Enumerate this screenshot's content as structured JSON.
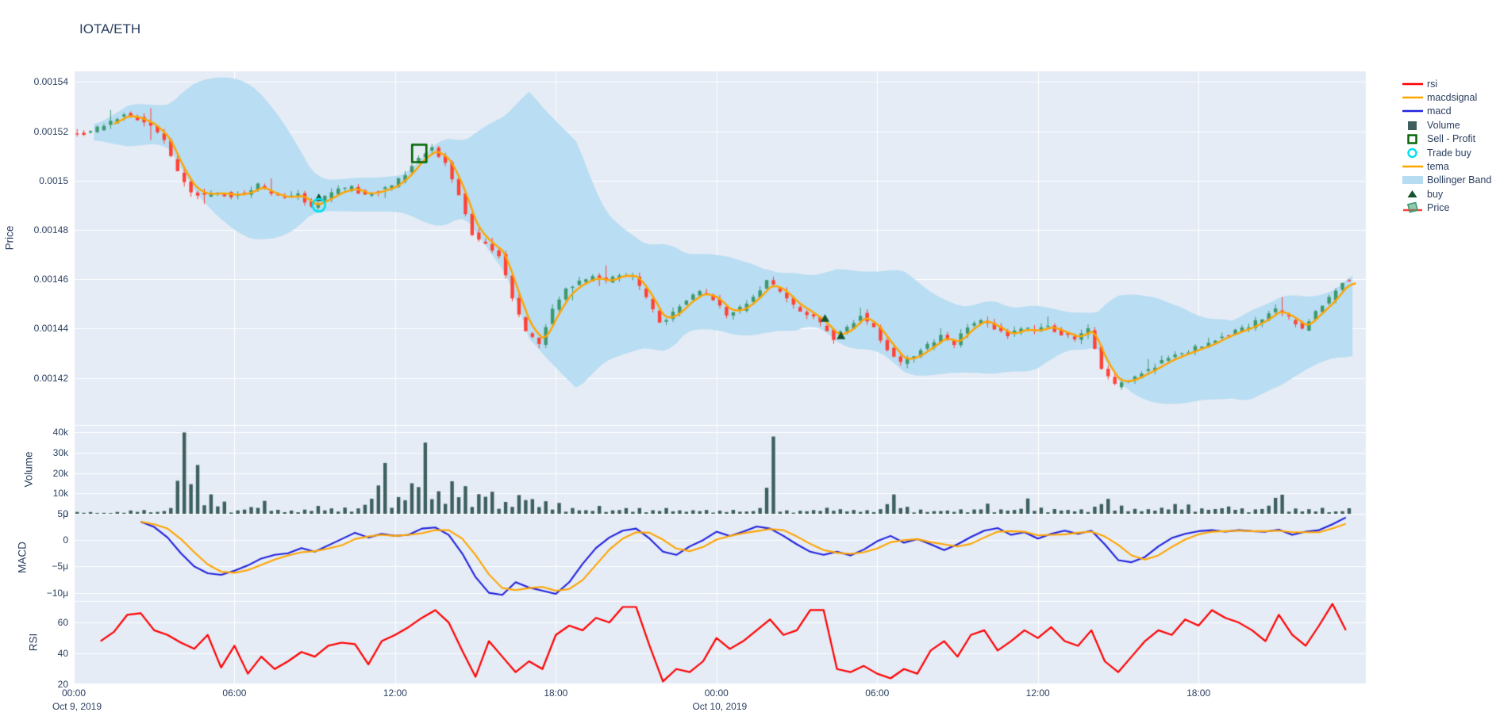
{
  "title": "IOTA/ETH",
  "colors": {
    "background": "#ffffff",
    "plot_bg": "#e5ecf6",
    "grid": "#ffffff",
    "text": "#2a3f5f",
    "candle_up": "#3D9970",
    "candle_down": "#FF4136",
    "volume_bar": "#3d5f5e",
    "macd_line": "#2222dd",
    "macdsignal_line": "#ffa500",
    "tema_line": "#ffa500",
    "rsi_line": "#ff0000",
    "bollinger": "#b6dcf1",
    "buy_marker": "#14532d",
    "sell_marker": "#006400",
    "trade_buy_marker": "#00e0ee"
  },
  "panels": {
    "price": {
      "label": "Price"
    },
    "volume": {
      "label": "Volume"
    },
    "macd": {
      "label": "MACD"
    },
    "rsi": {
      "label": "RSI"
    }
  },
  "x_axis": {
    "ticks": [
      {
        "t": 0,
        "label": "00:00"
      },
      {
        "t": 6,
        "label": "06:00"
      },
      {
        "t": 12,
        "label": "12:00"
      },
      {
        "t": 18,
        "label": "18:00"
      },
      {
        "t": 24,
        "label": "00:00"
      },
      {
        "t": 30,
        "label": "06:00"
      },
      {
        "t": 36,
        "label": "12:00"
      },
      {
        "t": 42,
        "label": "18:00"
      }
    ],
    "day_labels": [
      {
        "t": 0,
        "label": "Oct 9, 2019"
      },
      {
        "t": 24,
        "label": "Oct 10, 2019"
      }
    ]
  },
  "legend": {
    "items": [
      {
        "label": "rsi",
        "symbol": "line",
        "color": "#ff0000"
      },
      {
        "label": "macdsignal",
        "symbol": "line",
        "color": "#ffa500"
      },
      {
        "label": "macd",
        "symbol": "line",
        "color": "#2222dd"
      },
      {
        "label": "Volume",
        "symbol": "square_fill",
        "color": "#3d5f5e"
      },
      {
        "label": "Sell - Profit",
        "symbol": "square_open",
        "color": "#006400"
      },
      {
        "label": "Trade buy",
        "symbol": "circle_open",
        "color": "#00e0ee"
      },
      {
        "label": "tema",
        "symbol": "line",
        "color": "#ffa500"
      },
      {
        "label": "Bollinger Band",
        "symbol": "band",
        "color": "#b6dcf1"
      },
      {
        "label": "buy",
        "symbol": "triangle",
        "color": "#14532d"
      },
      {
        "label": "Price",
        "symbol": "candle",
        "color": "#3D9970"
      }
    ]
  },
  "chart_data": [
    {
      "type": "candlestick",
      "panel": "Price",
      "x_unit": "hours from Oct 9 2019 00:00",
      "x0": 0,
      "x_step": 0.5,
      "close_micro_eth": [
        1520,
        1519,
        1521,
        1524,
        1527,
        1525,
        1522,
        1516,
        1503,
        1495,
        1494,
        1495,
        1494,
        1495,
        1498,
        1494,
        1493,
        1494,
        1489,
        1493,
        1496,
        1497,
        1494,
        1496,
        1498,
        1503,
        1510,
        1513,
        1507,
        1494,
        1478,
        1474,
        1470,
        1452,
        1438,
        1434,
        1448,
        1456,
        1459,
        1461,
        1459,
        1462,
        1461,
        1452,
        1442,
        1446,
        1452,
        1455,
        1452,
        1446,
        1448,
        1453,
        1459,
        1455,
        1449,
        1446,
        1442,
        1436,
        1440,
        1446,
        1440,
        1432,
        1426,
        1429,
        1433,
        1437,
        1434,
        1441,
        1444,
        1440,
        1437,
        1440,
        1439,
        1441,
        1438,
        1436,
        1440,
        1424,
        1417,
        1419,
        1422,
        1425,
        1428,
        1430,
        1432,
        1434,
        1437,
        1439,
        1441,
        1444,
        1448,
        1444,
        1440,
        1447,
        1452,
        1459
      ],
      "ylim_eth": [
        0.001401,
        0.001544
      ],
      "yticks": [
        {
          "v": 1540,
          "label": "0.00154"
        },
        {
          "v": 1520,
          "label": "0.00152"
        },
        {
          "v": 1500,
          "label": "0.0015"
        },
        {
          "v": 1480,
          "label": "0.00148"
        },
        {
          "v": 1460,
          "label": "0.00146"
        },
        {
          "v": 1440,
          "label": "0.00144"
        },
        {
          "v": 1420,
          "label": "0.00142"
        }
      ],
      "overlays": {
        "tema": "ema of close",
        "bollinger_band": "rolling mean ± 2 sd"
      },
      "markers": {
        "sell_profit": [
          {
            "x": 12.9,
            "price_micro": 1511
          }
        ],
        "trade_buy": [
          {
            "x": 9.15,
            "price_micro": 1490
          }
        ],
        "buy": [
          {
            "x": 9.15,
            "price_micro": 1493
          },
          {
            "x": 28.05,
            "price_micro": 1444
          },
          {
            "x": 28.65,
            "price_micro": 1437
          }
        ]
      }
    },
    {
      "type": "bar",
      "panel": "Volume",
      "x0": 0,
      "x_step": 0.5,
      "values_k": [
        1.2,
        0.8,
        0.6,
        1.0,
        1.5,
        2.0,
        1.2,
        3.0,
        40,
        24,
        9,
        6.5,
        2.0,
        3.5,
        6.0,
        2.5,
        1.5,
        2.0,
        4.0,
        2.5,
        3.0,
        2.5,
        8.0,
        25,
        9.0,
        15,
        35,
        14,
        16,
        12,
        9,
        14,
        6,
        8,
        10,
        7,
        5,
        3,
        2.5,
        4,
        2,
        3,
        2.5,
        2,
        3.5,
        2,
        1.5,
        2,
        1.5,
        2,
        1.5,
        2.5,
        38,
        2,
        1.5,
        2,
        2.5,
        3,
        2,
        1.5,
        2,
        9,
        4,
        2,
        1.5,
        2,
        3,
        2,
        5,
        2,
        2.5,
        7,
        3,
        2,
        2.5,
        2,
        3,
        8,
        5,
        3,
        2.5,
        3,
        5,
        4,
        2.5,
        3,
        5,
        3,
        2.5,
        4,
        12,
        3,
        2,
        2.5,
        1.5,
        3
      ],
      "ylim_k": [
        0,
        43
      ],
      "yticks": [
        {
          "v": 40,
          "label": "40k"
        },
        {
          "v": 30,
          "label": "30k"
        },
        {
          "v": 20,
          "label": "20k"
        },
        {
          "v": 10,
          "label": "10k"
        },
        {
          "v": 0,
          "label": "0"
        }
      ]
    },
    {
      "type": "line",
      "panel": "MACD",
      "x0": 2.5,
      "x_step": 0.5,
      "series": [
        {
          "name": "macd",
          "color_key": "macd_line",
          "values_micro": [
            3.5,
            2.5,
            0.5,
            -2.5,
            -5.0,
            -6.3,
            -6.6,
            -5.8,
            -4.8,
            -3.5,
            -2.8,
            -2.5,
            -1.5,
            -2.2,
            -1.0,
            0.2,
            1.4,
            0.5,
            1.2,
            0.8,
            1.0,
            2.2,
            2.4,
            1.0,
            -2.5,
            -7.0,
            -10.0,
            -10.4,
            -8.0,
            -9.0,
            -9.6,
            -10.2,
            -8.0,
            -4.5,
            -1.5,
            0.5,
            1.8,
            2.2,
            0.3,
            -2.2,
            -2.8,
            -1.2,
            0.0,
            1.6,
            0.8,
            1.6,
            2.6,
            2.2,
            0.8,
            -0.8,
            -2.2,
            -2.8,
            -2.2,
            -2.9,
            -1.8,
            -0.2,
            0.8,
            -0.5,
            0.2,
            -0.8,
            -1.9,
            -0.8,
            0.6,
            1.8,
            2.3,
            1.0,
            1.5,
            0.3,
            1.2,
            1.8,
            1.2,
            1.8,
            -0.8,
            -3.8,
            -4.2,
            -3.2,
            -1.2,
            0.4,
            1.2,
            1.7,
            1.9,
            1.6,
            1.9,
            1.7,
            1.6,
            2.0,
            1.0,
            1.6,
            1.9,
            3.0,
            4.3
          ]
        },
        {
          "name": "macdsignal",
          "color_key": "macdsignal_line",
          "values_micro": [
            3.5,
            3.0,
            2.2,
            0.2,
            -2.3,
            -4.6,
            -6.0,
            -6.2,
            -5.7,
            -4.7,
            -3.7,
            -2.9,
            -2.3,
            -2.1,
            -1.6,
            -1.0,
            0.2,
            0.7,
            1.0,
            0.8,
            1.0,
            1.3,
            1.9,
            1.9,
            0.3,
            -2.8,
            -6.5,
            -9.1,
            -9.5,
            -9.1,
            -8.9,
            -9.6,
            -9.3,
            -7.6,
            -4.7,
            -1.8,
            0.3,
            1.5,
            1.4,
            0.1,
            -1.6,
            -2.1,
            -1.3,
            0.1,
            0.8,
            1.3,
            1.7,
            2.1,
            1.9,
            0.7,
            -0.7,
            -1.9,
            -2.4,
            -2.6,
            -2.3,
            -1.6,
            -0.4,
            0.0,
            0.2,
            -0.4,
            -0.8,
            -1.2,
            -0.7,
            0.5,
            1.6,
            1.7,
            1.6,
            0.9,
            1.0,
            1.1,
            1.4,
            1.6,
            0.7,
            -0.9,
            -2.9,
            -3.7,
            -2.9,
            -1.3,
            0.1,
            1.1,
            1.6,
            1.7,
            1.8,
            1.7,
            1.7,
            1.8,
            1.5,
            1.5,
            1.5,
            2.2,
            3.1
          ]
        }
      ],
      "ylim_micro": [
        -11.6,
        5
      ],
      "yticks": [
        {
          "v": 5,
          "label": "5μ"
        },
        {
          "v": 0,
          "label": "0"
        },
        {
          "v": -5,
          "label": "−5μ"
        },
        {
          "v": -10,
          "label": "−10μ"
        }
      ]
    },
    {
      "type": "line",
      "panel": "RSI",
      "x0": 1.0,
      "x_step": 0.5,
      "series": [
        {
          "name": "rsi",
          "color_key": "rsi_line",
          "values": [
            48,
            54,
            65,
            66,
            55,
            52,
            47,
            43,
            52,
            31,
            45,
            27,
            38,
            30,
            35,
            41,
            38,
            45,
            47,
            46,
            33,
            48,
            52,
            57,
            63,
            68,
            60,
            42,
            25,
            48,
            38,
            28,
            35,
            30,
            52,
            58,
            55,
            63,
            60,
            70,
            70,
            45,
            22,
            30,
            28,
            35,
            50,
            43,
            48,
            55,
            62,
            52,
            55,
            68,
            68,
            30,
            28,
            32,
            27,
            24,
            30,
            27,
            42,
            48,
            38,
            52,
            55,
            42,
            48,
            55,
            50,
            57,
            48,
            45,
            55,
            35,
            28,
            38,
            48,
            55,
            52,
            62,
            58,
            68,
            63,
            60,
            55,
            48,
            65,
            52,
            45,
            58,
            72,
            55
          ]
        }
      ],
      "ylim": [
        20,
        73.8
      ],
      "yticks": [
        {
          "v": 60,
          "label": "60"
        },
        {
          "v": 40,
          "label": "40"
        },
        {
          "v": 20,
          "label": "20"
        }
      ]
    }
  ]
}
